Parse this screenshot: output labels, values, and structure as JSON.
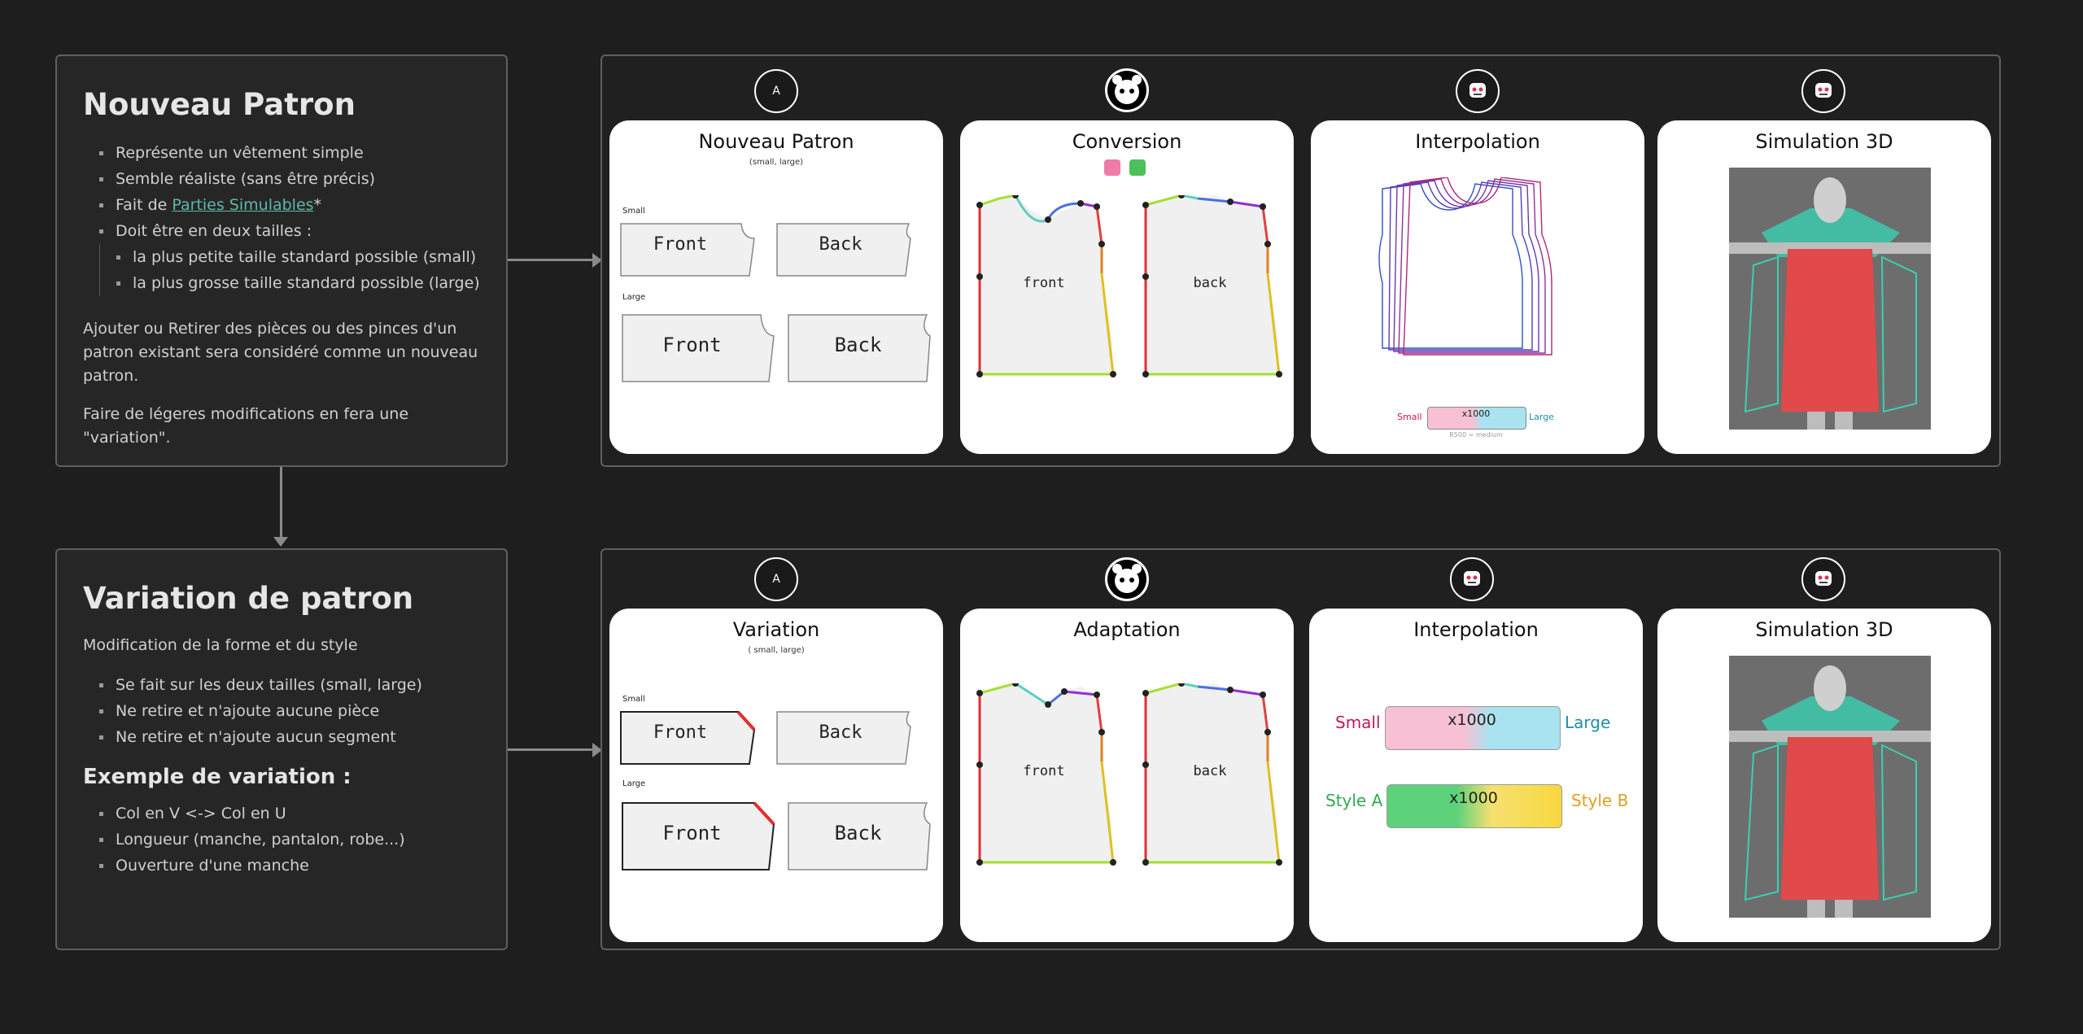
{
  "note_new": {
    "title": "Nouveau Patron",
    "bullets": [
      "Représente un vêtement simple",
      "Semble réaliste (sans être précis)",
      "Fait de ",
      "Doit être en deux tailles :"
    ],
    "link_text": "Parties Simulables",
    "link_suffix": "*",
    "sub_bullets": [
      "la plus petite taille standard possible (small)",
      "la plus grosse taille standard possible (large)"
    ],
    "para1": "Ajouter ou Retirer des pièces ou des pinces d'un patron existant sera considéré comme un nouveau patron.",
    "para2": "Faire de légeres modifications en fera une \"variation\"."
  },
  "note_var": {
    "title": "Variation de patron",
    "intro": "Modification de la forme et du style",
    "bullets": [
      "Se fait sur les deux tailles (small, large)",
      "Ne retire et n'ajoute aucune pièce",
      "Ne retire et n'ajoute aucun segment"
    ],
    "example_title": "Exemple de variation :",
    "example_bullets": [
      "Col en V <-> Col en U",
      "Longueur (manche, pantalon, robe...)",
      "Ouverture d'une manche"
    ]
  },
  "row1": {
    "icons": [
      "A",
      "",
      "",
      ""
    ],
    "cards": [
      {
        "title": "Nouveau Patron",
        "sub": "(small, large)",
        "small_label": "Small",
        "large_label": "Large",
        "front": "Front",
        "back": "Back"
      },
      {
        "title": "Conversion",
        "front": "front",
        "back": "back"
      },
      {
        "title": "Interpolation",
        "small": "Small",
        "large": "Large",
        "slider": "x1000",
        "caption": "R500 = medium"
      },
      {
        "title": "Simulation 3D"
      }
    ]
  },
  "row2": {
    "icons": [
      "A",
      "",
      "",
      ""
    ],
    "cards": [
      {
        "title": "Variation",
        "sub": "( small, large)",
        "small_label": "Small",
        "large_label": "Large",
        "front": "Front",
        "back": "Back"
      },
      {
        "title": "Adaptation",
        "front": "front",
        "back": "back"
      },
      {
        "title": "Interpolation",
        "small": "Small",
        "large": "Large",
        "slider1": "x1000",
        "style_a": "Style A",
        "style_b": "Style B",
        "slider2": "x1000"
      },
      {
        "title": "Simulation 3D"
      }
    ]
  },
  "colors": {
    "background": "#1e1e1e",
    "link": "#5fb8a8",
    "small_pink": "#c2185b",
    "large_teal": "#1f8fa6",
    "style_a_green": "#2eaa50",
    "style_b_gold": "#e0a020",
    "seam_red": "#e03030",
    "seam_green": "#a5e030"
  }
}
